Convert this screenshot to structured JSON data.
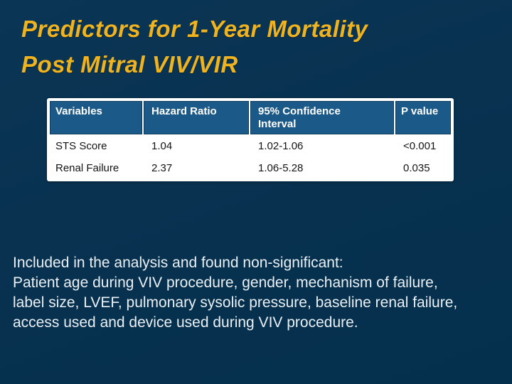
{
  "title": {
    "line1": "Predictors for 1-Year Mortality",
    "line2": "Post Mitral VIV/VIR"
  },
  "table": {
    "headers": [
      "Variables",
      "Hazard Ratio",
      "95% Confidence\nInterval",
      "P value"
    ],
    "rows": [
      [
        "STS Score",
        "1.04",
        "1.02-1.06",
        "<0.001"
      ],
      [
        "Renal Failure",
        "2.37",
        "1.06-5.28",
        "0.035"
      ]
    ]
  },
  "note": {
    "lines": [
      "Included in the analysis and found non-significant:",
      "Patient age during VIV procedure, gender, mechanism of failure,",
      "label size, LVEF, pulmonary sysolic pressure, baseline renal failure,",
      "access used and device used during VIV procedure."
    ]
  },
  "colors": {
    "background": "#07314F",
    "title_gold": "#EFB31F",
    "table_header_bg": "#1B5A88",
    "table_body_bg": "#FFFFFF",
    "table_body_text": "#141414",
    "note_text": "#EAF0F4"
  }
}
